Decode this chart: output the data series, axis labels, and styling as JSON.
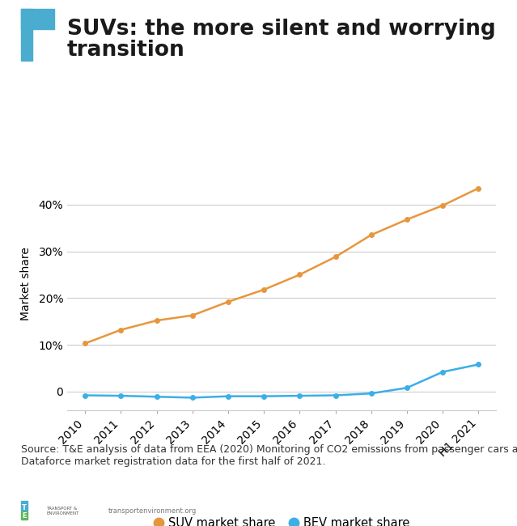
{
  "title_line1": "SUVs: the more silent and worrying",
  "title_line2": "transition",
  "ylabel": "Market share",
  "x_labels": [
    "2010",
    "2011",
    "2012",
    "2013",
    "2014",
    "2015",
    "2016",
    "2017",
    "2018",
    "2019",
    "2020",
    "H1 2021"
  ],
  "suv_values": [
    10.3,
    13.2,
    15.2,
    16.3,
    19.2,
    21.8,
    25.0,
    28.8,
    33.5,
    36.8,
    39.8,
    43.5
  ],
  "bev_values": [
    -0.8,
    -0.9,
    -1.1,
    -1.3,
    -1.0,
    -1.0,
    -0.9,
    -0.8,
    -0.4,
    0.8,
    4.2,
    5.8
  ],
  "suv_color": "#E8963C",
  "bev_color": "#3CAEE8",
  "yticks": [
    0,
    10,
    20,
    30,
    40
  ],
  "ytick_labels": [
    "0",
    "10%",
    "20%",
    "30%",
    "40%"
  ],
  "ylim": [
    -4,
    50
  ],
  "source_text": "Source: T&E analysis of data from EEA (2020) Monitoring of CO2 emissions from passenger cars and\nDataforce market registration data for the first half of 2021.",
  "legend_suv": "SUV market share",
  "legend_bev": "BEV market share",
  "bg_color": "#ffffff",
  "accent_color": "#4AADCF",
  "title_fontsize": 19,
  "axis_fontsize": 10,
  "source_fontsize": 9
}
